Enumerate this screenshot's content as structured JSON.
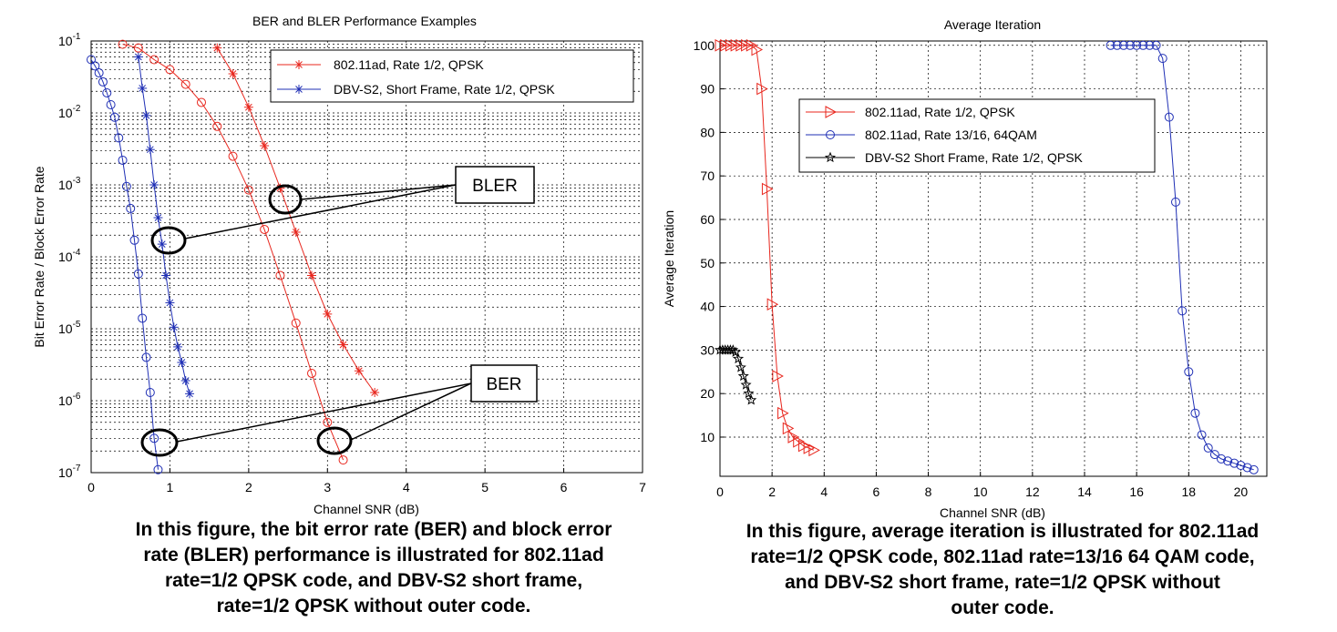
{
  "chart_data": [
    {
      "type": "line",
      "title": "BER and BLER Performance Examples",
      "xlabel": "Channel SNR (dB)",
      "ylabel": "Bit Error Rate / Block Error Rate",
      "xlim": [
        0,
        7
      ],
      "ylim": [
        1e-07,
        0.1
      ],
      "yscale": "log",
      "grid": true,
      "legend_placement": "top-right",
      "x_ticks": [
        "0",
        "1",
        "2",
        "3",
        "4",
        "5",
        "6",
        "7"
      ],
      "y_ticks": [
        {
          "base": "10",
          "exp": "-1"
        },
        {
          "base": "10",
          "exp": "-2"
        },
        {
          "base": "10",
          "exp": "-3"
        },
        {
          "base": "10",
          "exp": "-4"
        },
        {
          "base": "10",
          "exp": "-5"
        },
        {
          "base": "10",
          "exp": "-6"
        },
        {
          "base": "10",
          "exp": "-7"
        }
      ],
      "series": [
        {
          "name": "802.11ad, Rate 1/2, QPSK",
          "metric": "BLER",
          "marker": "circle",
          "color": "#e8271e",
          "in_legend": false,
          "x": [
            0.4,
            0.6,
            0.8,
            1.0,
            1.2,
            1.4,
            1.6,
            1.8,
            2.0,
            2.2,
            2.4,
            2.6,
            2.8,
            3.0,
            3.2
          ],
          "y": [
            0.09,
            0.08,
            0.055,
            0.04,
            0.025,
            0.014,
            0.0065,
            0.0025,
            0.00085,
            0.00024,
            5.5e-05,
            1.2e-05,
            2.4e-06,
            5e-07,
            1.5e-07
          ]
        },
        {
          "name": "802.11ad, Rate 1/2, QPSK",
          "metric": "BER",
          "marker": "asterisk",
          "color": "#e8271e",
          "in_legend": true,
          "x": [
            1.6,
            1.8,
            2.0,
            2.2,
            2.4,
            2.6,
            2.8,
            3.0,
            3.2,
            3.4,
            3.6
          ],
          "y": [
            0.08,
            0.035,
            0.012,
            0.0035,
            0.0009,
            0.00022,
            5.5e-05,
            1.6e-05,
            6e-06,
            2.6e-06,
            1.3e-06
          ]
        },
        {
          "name": "DBV-S2, Short Frame, Rate 1/2, QPSK",
          "metric": "BLER",
          "marker": "circle",
          "color": "#1f2fb5",
          "in_legend": false,
          "x": [
            0.0,
            0.05,
            0.1,
            0.15,
            0.2,
            0.25,
            0.3,
            0.35,
            0.4,
            0.45,
            0.5,
            0.55,
            0.6,
            0.65,
            0.7,
            0.75,
            0.8,
            0.85
          ],
          "y": [
            0.055,
            0.045,
            0.036,
            0.027,
            0.019,
            0.013,
            0.0087,
            0.0045,
            0.0022,
            0.00095,
            0.00047,
            0.00017,
            5.8e-05,
            1.4e-05,
            4e-06,
            1.3e-06,
            3e-07,
            1.1e-07
          ]
        },
        {
          "name": "DBV-S2, Short Frame, Rate 1/2, QPSK",
          "metric": "BER",
          "marker": "asterisk",
          "color": "#1f2fb5",
          "in_legend": true,
          "x": [
            0.6,
            0.65,
            0.7,
            0.75,
            0.8,
            0.85,
            0.9,
            0.95,
            1.0,
            1.05,
            1.1,
            1.15,
            1.2,
            1.25
          ],
          "y": [
            0.06,
            0.022,
            0.0092,
            0.0031,
            0.001,
            0.00035,
            0.00015,
            5.5e-05,
            2.3e-05,
            1.05e-05,
            5.6e-06,
            3.4e-06,
            1.9e-06,
            1.25e-06
          ]
        }
      ],
      "annotations": [
        {
          "label": "BLER",
          "points_to": "circled BLER curves near 1e-3 to 1e-4"
        },
        {
          "label": "BER",
          "points_to": "circled BER curves near 1e-7"
        }
      ]
    },
    {
      "type": "line",
      "title": "Average Iteration",
      "xlabel": "Channel SNR (dB)",
      "ylabel": "Average Iteration",
      "xlim": [
        0,
        21
      ],
      "ylim": [
        1,
        101
      ],
      "grid": true,
      "legend_placement": "top-left",
      "x_ticks": [
        "0",
        "2",
        "4",
        "6",
        "8",
        "10",
        "12",
        "14",
        "16",
        "18",
        "20"
      ],
      "y_ticks": [
        "10",
        "20",
        "30",
        "40",
        "50",
        "60",
        "70",
        "80",
        "90",
        "100"
      ],
      "series": [
        {
          "name": "802.11ad, Rate 1/2, QPSK",
          "marker": "triangle-right",
          "color": "#e8271e",
          "x": [
            0.0,
            0.2,
            0.4,
            0.6,
            0.8,
            1.0,
            1.2,
            1.4,
            1.6,
            1.8,
            2.0,
            2.2,
            2.4,
            2.6,
            2.8,
            3.0,
            3.2,
            3.4,
            3.6
          ],
          "y": [
            100,
            100,
            100,
            100,
            100,
            100,
            100,
            99,
            90,
            67,
            40.5,
            24,
            15.5,
            12,
            10,
            9,
            8,
            7.5,
            7
          ]
        },
        {
          "name": "802.11ad, Rate 13/16, 64QAM",
          "marker": "circle",
          "color": "#1f2fb5",
          "x": [
            15.0,
            15.25,
            15.5,
            15.75,
            16.0,
            16.25,
            16.5,
            16.75,
            17.0,
            17.25,
            17.5,
            17.75,
            18.0,
            18.25,
            18.5,
            18.75,
            19.0,
            19.25,
            19.5,
            19.75,
            20.0,
            20.25,
            20.5
          ],
          "y": [
            100,
            100,
            100,
            100,
            100,
            100,
            100,
            100,
            97,
            83.5,
            64,
            39,
            25,
            15.5,
            10.5,
            7.5,
            6,
            5,
            4.5,
            4,
            3.5,
            3,
            2.5
          ]
        },
        {
          "name": "DBV-S2 Short Frame, Rate 1/2, QPSK",
          "marker": "pentagram",
          "color": "#000000",
          "x": [
            0.0,
            0.1,
            0.2,
            0.3,
            0.4,
            0.5,
            0.6,
            0.7,
            0.8,
            0.9,
            1.0,
            1.1,
            1.2
          ],
          "y": [
            30,
            30,
            30,
            30,
            30,
            30,
            29.5,
            28,
            26,
            24,
            22,
            20,
            18.5
          ]
        }
      ]
    }
  ],
  "captions": {
    "left": [
      "In this figure, the bit error rate (BER) and block error",
      "rate (BLER) performance is illustrated for 802.11ad",
      "rate=1/2 QPSK code, and DBV-S2 short frame,",
      "rate=1/2 QPSK without outer code."
    ],
    "right": [
      "In this figure, average iteration is illustrated for 802.11ad",
      "rate=1/2 QPSK code, 802.11ad rate=13/16  64 QAM code,",
      "and DBV-S2 short frame, rate=1/2 QPSK without",
      "outer code."
    ]
  }
}
